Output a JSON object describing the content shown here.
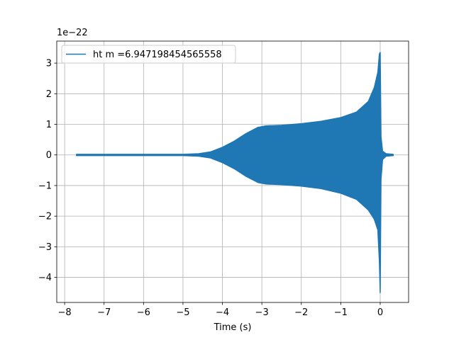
{
  "chart_data": {
    "type": "line",
    "title": "",
    "xlabel": "Time (s)",
    "ylabel": "",
    "y_offset_label": "1e−22",
    "xlim": [
      -8.2,
      0.72
    ],
    "ylim": [
      -4.82,
      3.72
    ],
    "x_ticks": [
      -8,
      -7,
      -6,
      -5,
      -4,
      -3,
      -2,
      -1,
      0
    ],
    "x_tick_labels": [
      "−8",
      "−7",
      "−6",
      "−5",
      "−4",
      "−3",
      "−2",
      "−1",
      "0"
    ],
    "y_ticks": [
      -4,
      -3,
      -2,
      -1,
      0,
      1,
      2,
      3
    ],
    "y_tick_labels": [
      "−4",
      "−3",
      "−2",
      "−1",
      "0",
      "1",
      "2",
      "3"
    ],
    "grid": true,
    "legend_position": "top-left",
    "series": [
      {
        "name": "ht m =6.947198454565558",
        "color": "#1f77b4",
        "envelope_upper": [
          [
            -7.7,
            0.02
          ],
          [
            -7.0,
            0.02
          ],
          [
            -6.0,
            0.02
          ],
          [
            -5.0,
            0.02
          ],
          [
            -4.6,
            0.04
          ],
          [
            -4.3,
            0.1
          ],
          [
            -4.0,
            0.25
          ],
          [
            -3.7,
            0.45
          ],
          [
            -3.4,
            0.7
          ],
          [
            -3.1,
            0.9
          ],
          [
            -2.9,
            0.95
          ],
          [
            -2.5,
            0.97
          ],
          [
            -2.0,
            1.02
          ],
          [
            -1.5,
            1.1
          ],
          [
            -1.0,
            1.22
          ],
          [
            -0.6,
            1.4
          ],
          [
            -0.3,
            1.75
          ],
          [
            -0.15,
            2.2
          ],
          [
            -0.06,
            2.7
          ],
          [
            -0.02,
            3.3
          ],
          [
            0.0,
            3.35
          ],
          [
            0.02,
            0.6
          ],
          [
            0.06,
            0.12
          ],
          [
            0.15,
            0.04
          ],
          [
            0.33,
            0.02
          ]
        ],
        "envelope_lower": [
          [
            -7.7,
            -0.02
          ],
          [
            -7.0,
            -0.02
          ],
          [
            -6.0,
            -0.02
          ],
          [
            -5.0,
            -0.02
          ],
          [
            -4.6,
            -0.04
          ],
          [
            -4.3,
            -0.1
          ],
          [
            -4.0,
            -0.25
          ],
          [
            -3.7,
            -0.45
          ],
          [
            -3.4,
            -0.7
          ],
          [
            -3.1,
            -0.9
          ],
          [
            -2.9,
            -0.95
          ],
          [
            -2.5,
            -0.97
          ],
          [
            -2.0,
            -1.02
          ],
          [
            -1.5,
            -1.1
          ],
          [
            -1.0,
            -1.25
          ],
          [
            -0.6,
            -1.45
          ],
          [
            -0.3,
            -1.8
          ],
          [
            -0.15,
            -2.1
          ],
          [
            -0.06,
            -2.45
          ],
          [
            -0.02,
            -3.5
          ],
          [
            0.0,
            -4.5
          ],
          [
            0.02,
            -0.8
          ],
          [
            0.06,
            -0.15
          ],
          [
            0.15,
            -0.04
          ],
          [
            0.33,
            -0.02
          ]
        ]
      }
    ]
  }
}
